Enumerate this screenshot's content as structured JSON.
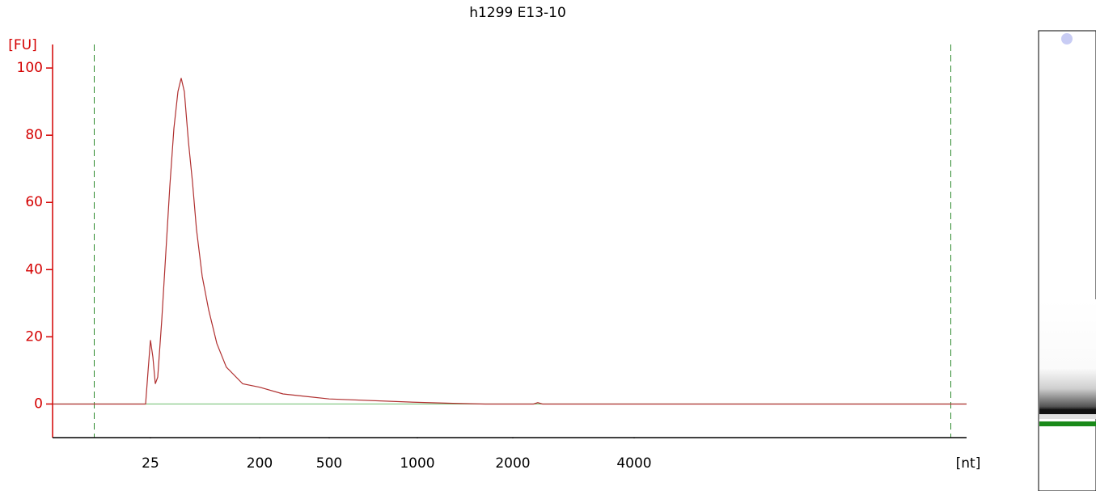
{
  "chart_data": {
    "type": "line",
    "title": "h1299 E13-10",
    "y_label": "[FU]",
    "x_label": "[nt]",
    "color": "#b03030",
    "x": [
      3.9,
      22.8,
      23.9,
      25,
      26.2,
      27.4,
      28.7,
      31.0,
      33.5,
      36.2,
      39.1,
      42.2,
      44.9,
      47.7,
      51.6,
      55.7,
      60.1,
      67.0,
      75.8,
      88.5,
      106,
      145,
      200,
      272,
      500,
      1000,
      1295,
      1637,
      2250,
      2307,
      2370,
      26700
    ],
    "values": [
      0,
      0,
      10,
      19,
      14,
      6,
      8,
      25,
      45,
      65,
      82,
      93,
      97,
      93,
      78,
      66,
      52,
      38,
      28,
      18,
      11,
      6,
      5,
      3,
      1.5,
      0.5,
      0.2,
      0,
      0,
      0.4,
      0,
      0
    ],
    "marker_lines": [
      8.6,
      24400
    ],
    "xlim": [
      3.9,
      26700
    ],
    "xticks": [
      25,
      200,
      500,
      1000,
      2000,
      4000
    ],
    "ylim": [
      -10,
      107
    ],
    "yticks": [
      0,
      20,
      40,
      60,
      80,
      100
    ]
  }
}
